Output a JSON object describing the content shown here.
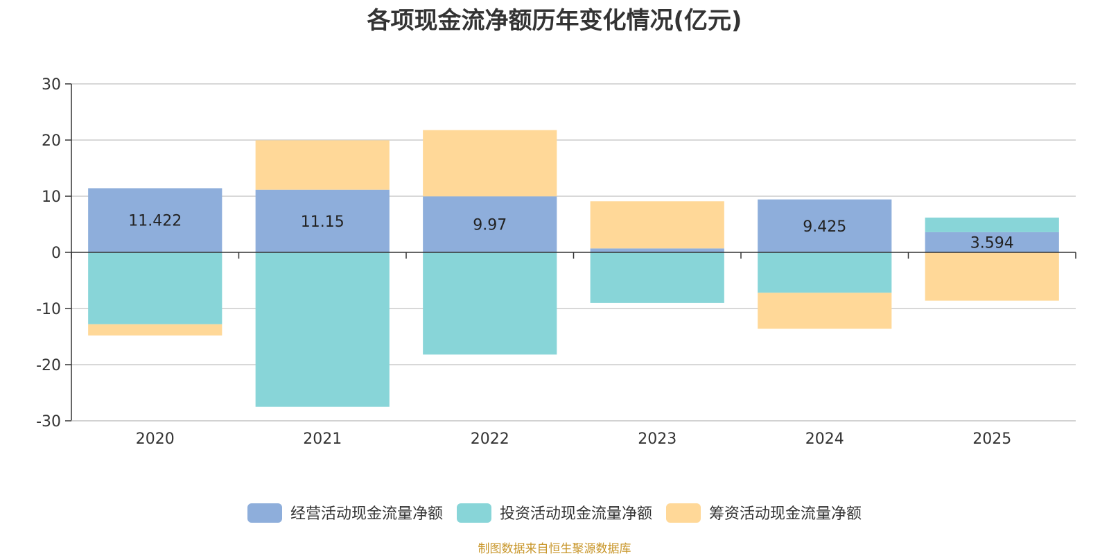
{
  "chart_data": {
    "type": "bar",
    "stacked": true,
    "title": "各项现金流净额历年变化情况(亿元)",
    "categories": [
      "2020",
      "2021",
      "2022",
      "2023",
      "2024",
      "2025"
    ],
    "ylim": [
      -30,
      30
    ],
    "yticks": [
      30,
      20,
      10,
      0,
      -10,
      -20,
      -30
    ],
    "grid": true,
    "legend_position": "bottom",
    "series": [
      {
        "name": "经营活动现金流量净额",
        "color": "#8eaedb",
        "values": [
          11.422,
          11.15,
          9.97,
          0.7,
          9.425,
          3.594
        ],
        "labels": [
          "11.422",
          "11.15",
          "9.97",
          "",
          "9.425",
          "3.594"
        ]
      },
      {
        "name": "投资活动现金流量净额",
        "color": "#88d5d8",
        "values": [
          -12.8,
          -27.5,
          -18.2,
          -9.0,
          -7.2,
          2.6
        ],
        "labels": [
          "",
          "",
          "",
          "",
          "",
          ""
        ]
      },
      {
        "name": "筹资活动现金流量净额",
        "color": "#ffd898",
        "values": [
          -2.0,
          8.8,
          11.8,
          8.4,
          -6.4,
          -8.6
        ],
        "labels": [
          "",
          "",
          "",
          "",
          "",
          ""
        ]
      }
    ]
  },
  "footer": "制图数据来自恒生聚源数据库"
}
